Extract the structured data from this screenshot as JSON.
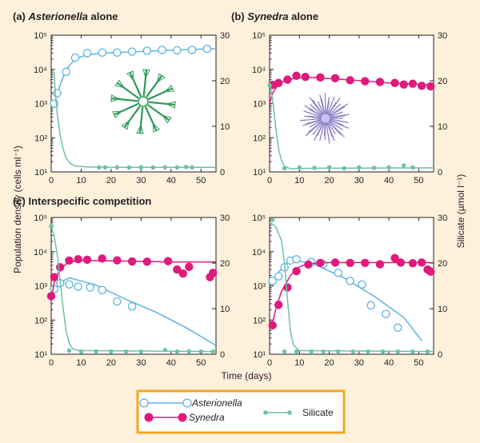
{
  "figure": {
    "ylabel_left": "Population density (cells ml⁻¹)",
    "ylabel_right": "Silicate (µmol l⁻¹)",
    "xlabel": "Time (days)"
  },
  "colors": {
    "asterionella": "#5bb3e0",
    "synedra": "#e0197d",
    "silicate": "#6cc3a0",
    "frame": "#231f20",
    "legend_border": "#f5a623"
  },
  "icons": {
    "asterionella_colony": "star-shaped-diatom-colony",
    "synedra_colony": "radiating-needle-diatom-colony"
  },
  "legend": {
    "asterionella": "Asterionella",
    "synedra": "Synedra",
    "silicate": "Silicate"
  },
  "chart_data": [
    {
      "type": "line",
      "panel": "a",
      "title_prefix": "(a) ",
      "title_italic": "Asterionella",
      "title_suffix": " alone",
      "x_ticks": [
        0,
        10,
        20,
        30,
        40,
        50
      ],
      "xlim": [
        0,
        55
      ],
      "y_left": {
        "scale": "log",
        "lim": [
          10,
          100000
        ],
        "ticks": [
          "10¹",
          "10²",
          "10³",
          "10⁴",
          "10⁵"
        ]
      },
      "y_right": {
        "lim": [
          0,
          30
        ],
        "ticks": [
          0,
          10,
          20,
          30
        ]
      },
      "series": [
        {
          "name": "Asterionella",
          "axis": "left",
          "points": [
            [
              1,
              1000
            ],
            [
              2,
              2000
            ],
            [
              5,
              8500
            ],
            [
              8,
              22000
            ],
            [
              12,
              30000
            ],
            [
              17,
              31000
            ],
            [
              22,
              31000
            ],
            [
              27,
              33000
            ],
            [
              32,
              35000
            ],
            [
              37,
              37000
            ],
            [
              42,
              36000
            ],
            [
              47,
              37000
            ],
            [
              52,
              40000
            ]
          ],
          "curve": [
            [
              1,
              1000
            ],
            [
              3,
              3500
            ],
            [
              5,
              10000
            ],
            [
              8,
              20000
            ],
            [
              12,
              27000
            ],
            [
              18,
              30000
            ],
            [
              25,
              32000
            ],
            [
              35,
              35000
            ],
            [
              45,
              38000
            ],
            [
              55,
              40000
            ]
          ]
        },
        {
          "name": "Silicate",
          "axis": "right",
          "points": [
            [
              16,
              1
            ],
            [
              18,
              1
            ],
            [
              22,
              1
            ],
            [
              26,
              1
            ],
            [
              30,
              1
            ],
            [
              34,
              1
            ],
            [
              38,
              1
            ],
            [
              42,
              1
            ],
            [
              45,
              1.1
            ],
            [
              47,
              1
            ]
          ],
          "curve": [
            [
              1,
              22
            ],
            [
              1.3,
              18
            ],
            [
              2,
              13
            ],
            [
              3,
              8
            ],
            [
              4,
              5
            ],
            [
              5,
              3
            ],
            [
              6.5,
              1.8
            ],
            [
              8,
              1.3
            ],
            [
              12,
              1.1
            ],
            [
              20,
              1
            ],
            [
              55,
              1
            ]
          ]
        }
      ]
    },
    {
      "type": "line",
      "panel": "b",
      "title_prefix": "(b) ",
      "title_italic": "Synedra",
      "title_suffix": " alone",
      "x_ticks": [
        0,
        10,
        20,
        30,
        40,
        50
      ],
      "xlim": [
        0,
        55
      ],
      "y_left": {
        "scale": "log",
        "lim": [
          10,
          100000
        ],
        "ticks": [
          "10¹",
          "10²",
          "10³",
          "10⁴",
          "10⁵"
        ]
      },
      "y_right": {
        "lim": [
          0,
          30
        ],
        "ticks": [
          0,
          10,
          20,
          30
        ]
      },
      "series": [
        {
          "name": "Synedra",
          "axis": "left",
          "points": [
            [
              1,
              3500
            ],
            [
              3,
              4000
            ],
            [
              6,
              5000
            ],
            [
              9,
              6500
            ],
            [
              12,
              6000
            ],
            [
              17,
              5800
            ],
            [
              22,
              5500
            ],
            [
              27,
              4800
            ],
            [
              32,
              4500
            ],
            [
              37,
              4300
            ],
            [
              42,
              4000
            ],
            [
              45,
              3600
            ],
            [
              48,
              3800
            ],
            [
              51,
              3300
            ],
            [
              54,
              3200
            ]
          ],
          "curve": [
            [
              0,
              1000
            ],
            [
              1,
              2000
            ],
            [
              3,
              3700
            ],
            [
              6,
              5000
            ],
            [
              10,
              5700
            ],
            [
              15,
              5800
            ],
            [
              20,
              5400
            ],
            [
              30,
              4700
            ],
            [
              40,
              4000
            ],
            [
              55,
              3500
            ]
          ]
        },
        {
          "name": "Silicate",
          "axis": "right",
          "points": [
            [
              0,
              19
            ],
            [
              5,
              0.8
            ],
            [
              10,
              1
            ],
            [
              15,
              0.9
            ],
            [
              20,
              1
            ],
            [
              25,
              0.8
            ],
            [
              30,
              1
            ],
            [
              35,
              0.9
            ],
            [
              40,
              1
            ],
            [
              45,
              1.4
            ],
            [
              48,
              1
            ]
          ],
          "curve": [
            [
              0,
              19.5
            ],
            [
              1,
              16
            ],
            [
              2,
              10
            ],
            [
              3,
              5
            ],
            [
              4,
              2.5
            ],
            [
              5,
              1.2
            ],
            [
              7,
              0.7
            ],
            [
              15,
              0.8
            ],
            [
              55,
              0.9
            ]
          ]
        }
      ]
    },
    {
      "type": "line",
      "panel": "c",
      "title_prefix": "(c) Interspecific competition",
      "title_italic": "",
      "title_suffix": "",
      "x_ticks": [
        0,
        10,
        20,
        30,
        40,
        50
      ],
      "xlim": [
        0,
        55
      ],
      "y_left": {
        "scale": "log",
        "lim": [
          10,
          100000
        ],
        "ticks": [
          "10¹",
          "10²",
          "10³",
          "10⁴",
          "10⁵"
        ]
      },
      "y_right": {
        "lim": [
          0,
          30
        ],
        "ticks": [
          0,
          10,
          20,
          30
        ]
      },
      "series": [
        {
          "name": "Asterionella",
          "axis": "left",
          "points": [
            [
              1,
              800
            ],
            [
              3,
              1200
            ],
            [
              6,
              1100
            ],
            [
              9,
              950
            ],
            [
              13,
              900
            ],
            [
              17,
              750
            ],
            [
              22,
              350
            ],
            [
              27,
              250
            ]
          ],
          "curve": [
            [
              0,
              500
            ],
            [
              2,
              900
            ],
            [
              4,
              1400
            ],
            [
              6,
              1700
            ],
            [
              10,
              1400
            ],
            [
              15,
              1050
            ],
            [
              25,
              400
            ],
            [
              35,
              170
            ],
            [
              45,
              60
            ],
            [
              55,
              18
            ]
          ]
        },
        {
          "name": "Synedra",
          "axis": "left",
          "points": [
            [
              0,
              500
            ],
            [
              1,
              1800
            ],
            [
              3,
              3500
            ],
            [
              6,
              5500
            ],
            [
              9,
              6000
            ],
            [
              12,
              5800
            ],
            [
              17,
              6300
            ],
            [
              22,
              5600
            ],
            [
              27,
              5200
            ],
            [
              32,
              5100
            ],
            [
              39,
              5300
            ],
            [
              42,
              3000
            ],
            [
              44,
              2300
            ],
            [
              46,
              3600
            ],
            [
              53,
              1800
            ],
            [
              54,
              2400
            ]
          ],
          "curve": [
            [
              0,
              400
            ],
            [
              1,
              1200
            ],
            [
              3,
              3200
            ],
            [
              6,
              5000
            ],
            [
              10,
              5500
            ],
            [
              20,
              5400
            ],
            [
              30,
              5200
            ],
            [
              40,
              5000
            ],
            [
              55,
              5000
            ]
          ]
        },
        {
          "name": "Silicate",
          "axis": "right",
          "points": [
            [
              0,
              28
            ],
            [
              6,
              0.8
            ],
            [
              10,
              0.6
            ],
            [
              15,
              0.6
            ],
            [
              20,
              0.6
            ],
            [
              25,
              0.6
            ],
            [
              30,
              0.6
            ],
            [
              38,
              0.9
            ],
            [
              42,
              0.6
            ],
            [
              46,
              0.6
            ],
            [
              50,
              0.6
            ],
            [
              54,
              0.6
            ]
          ],
          "curve": [
            [
              0,
              28
            ],
            [
              1,
              26
            ],
            [
              2,
              22
            ],
            [
              3,
              16
            ],
            [
              4,
              10
            ],
            [
              5,
              5
            ],
            [
              6,
              2.5
            ],
            [
              7,
              1.3
            ],
            [
              9,
              0.8
            ],
            [
              55,
              0.6
            ]
          ]
        }
      ]
    },
    {
      "type": "line",
      "panel": "d",
      "title_prefix": "",
      "title_italic": "",
      "title_suffix": "",
      "x_ticks": [
        0,
        10,
        20,
        30,
        40,
        50
      ],
      "xlim": [
        0,
        55
      ],
      "y_left": {
        "scale": "log",
        "lim": [
          10,
          100000
        ],
        "ticks": [
          "10¹",
          "10²",
          "10³",
          "10⁴",
          "10⁵"
        ]
      },
      "y_right": {
        "lim": [
          0,
          30
        ],
        "ticks": [
          0,
          10,
          20,
          30
        ]
      },
      "series": [
        {
          "name": "Asterionella",
          "axis": "left",
          "points": [
            [
              1,
              1400
            ],
            [
              3,
              1900
            ],
            [
              5,
              3500
            ],
            [
              7,
              5500
            ],
            [
              9,
              6000
            ],
            [
              14,
              5000
            ],
            [
              18,
              4300
            ],
            [
              23,
              2400
            ],
            [
              27,
              1400
            ],
            [
              31,
              1100
            ],
            [
              34,
              270
            ],
            [
              39,
              150
            ],
            [
              43,
              60
            ]
          ],
          "curve": [
            [
              0,
              1000
            ],
            [
              3,
              2500
            ],
            [
              6,
              5000
            ],
            [
              9,
              5500
            ],
            [
              15,
              4300
            ],
            [
              25,
              1700
            ],
            [
              35,
              500
            ],
            [
              45,
              120
            ],
            [
              51,
              25
            ]
          ]
        },
        {
          "name": "Synedra",
          "axis": "left",
          "points": [
            [
              1,
              70
            ],
            [
              3,
              280
            ],
            [
              6,
              900
            ],
            [
              9,
              2700
            ],
            [
              13,
              4200
            ],
            [
              17,
              4700
            ],
            [
              22,
              4800
            ],
            [
              27,
              4700
            ],
            [
              32,
              4700
            ],
            [
              37,
              4300
            ],
            [
              42,
              6500
            ],
            [
              44,
              4800
            ],
            [
              48,
              4600
            ],
            [
              51,
              4800
            ],
            [
              53,
              3000
            ],
            [
              54,
              2600
            ]
          ],
          "curve": [
            [
              1,
              80
            ],
            [
              2,
              200
            ],
            [
              4,
              700
            ],
            [
              7,
              2000
            ],
            [
              10,
              3600
            ],
            [
              13,
              4500
            ],
            [
              20,
              4800
            ],
            [
              35,
              4800
            ],
            [
              55,
              4800
            ]
          ]
        },
        {
          "name": "Silicate",
          "axis": "right",
          "points": [
            [
              1,
              29.5
            ],
            [
              5,
              0.6
            ],
            [
              9,
              0.6
            ],
            [
              14,
              0.6
            ],
            [
              18,
              0.6
            ],
            [
              23,
              0.6
            ],
            [
              28,
              0.6
            ],
            [
              33,
              0.6
            ],
            [
              38,
              0.6
            ],
            [
              43,
              0.6
            ],
            [
              48,
              0.6
            ],
            [
              53,
              0.6
            ]
          ],
          "curve": [
            [
              0,
              29
            ],
            [
              2,
              28
            ],
            [
              4,
              25
            ],
            [
              5,
              20
            ],
            [
              6,
              12
            ],
            [
              7,
              5
            ],
            [
              8,
              2
            ],
            [
              10,
              0.8
            ],
            [
              55,
              0.6
            ]
          ]
        }
      ]
    }
  ]
}
